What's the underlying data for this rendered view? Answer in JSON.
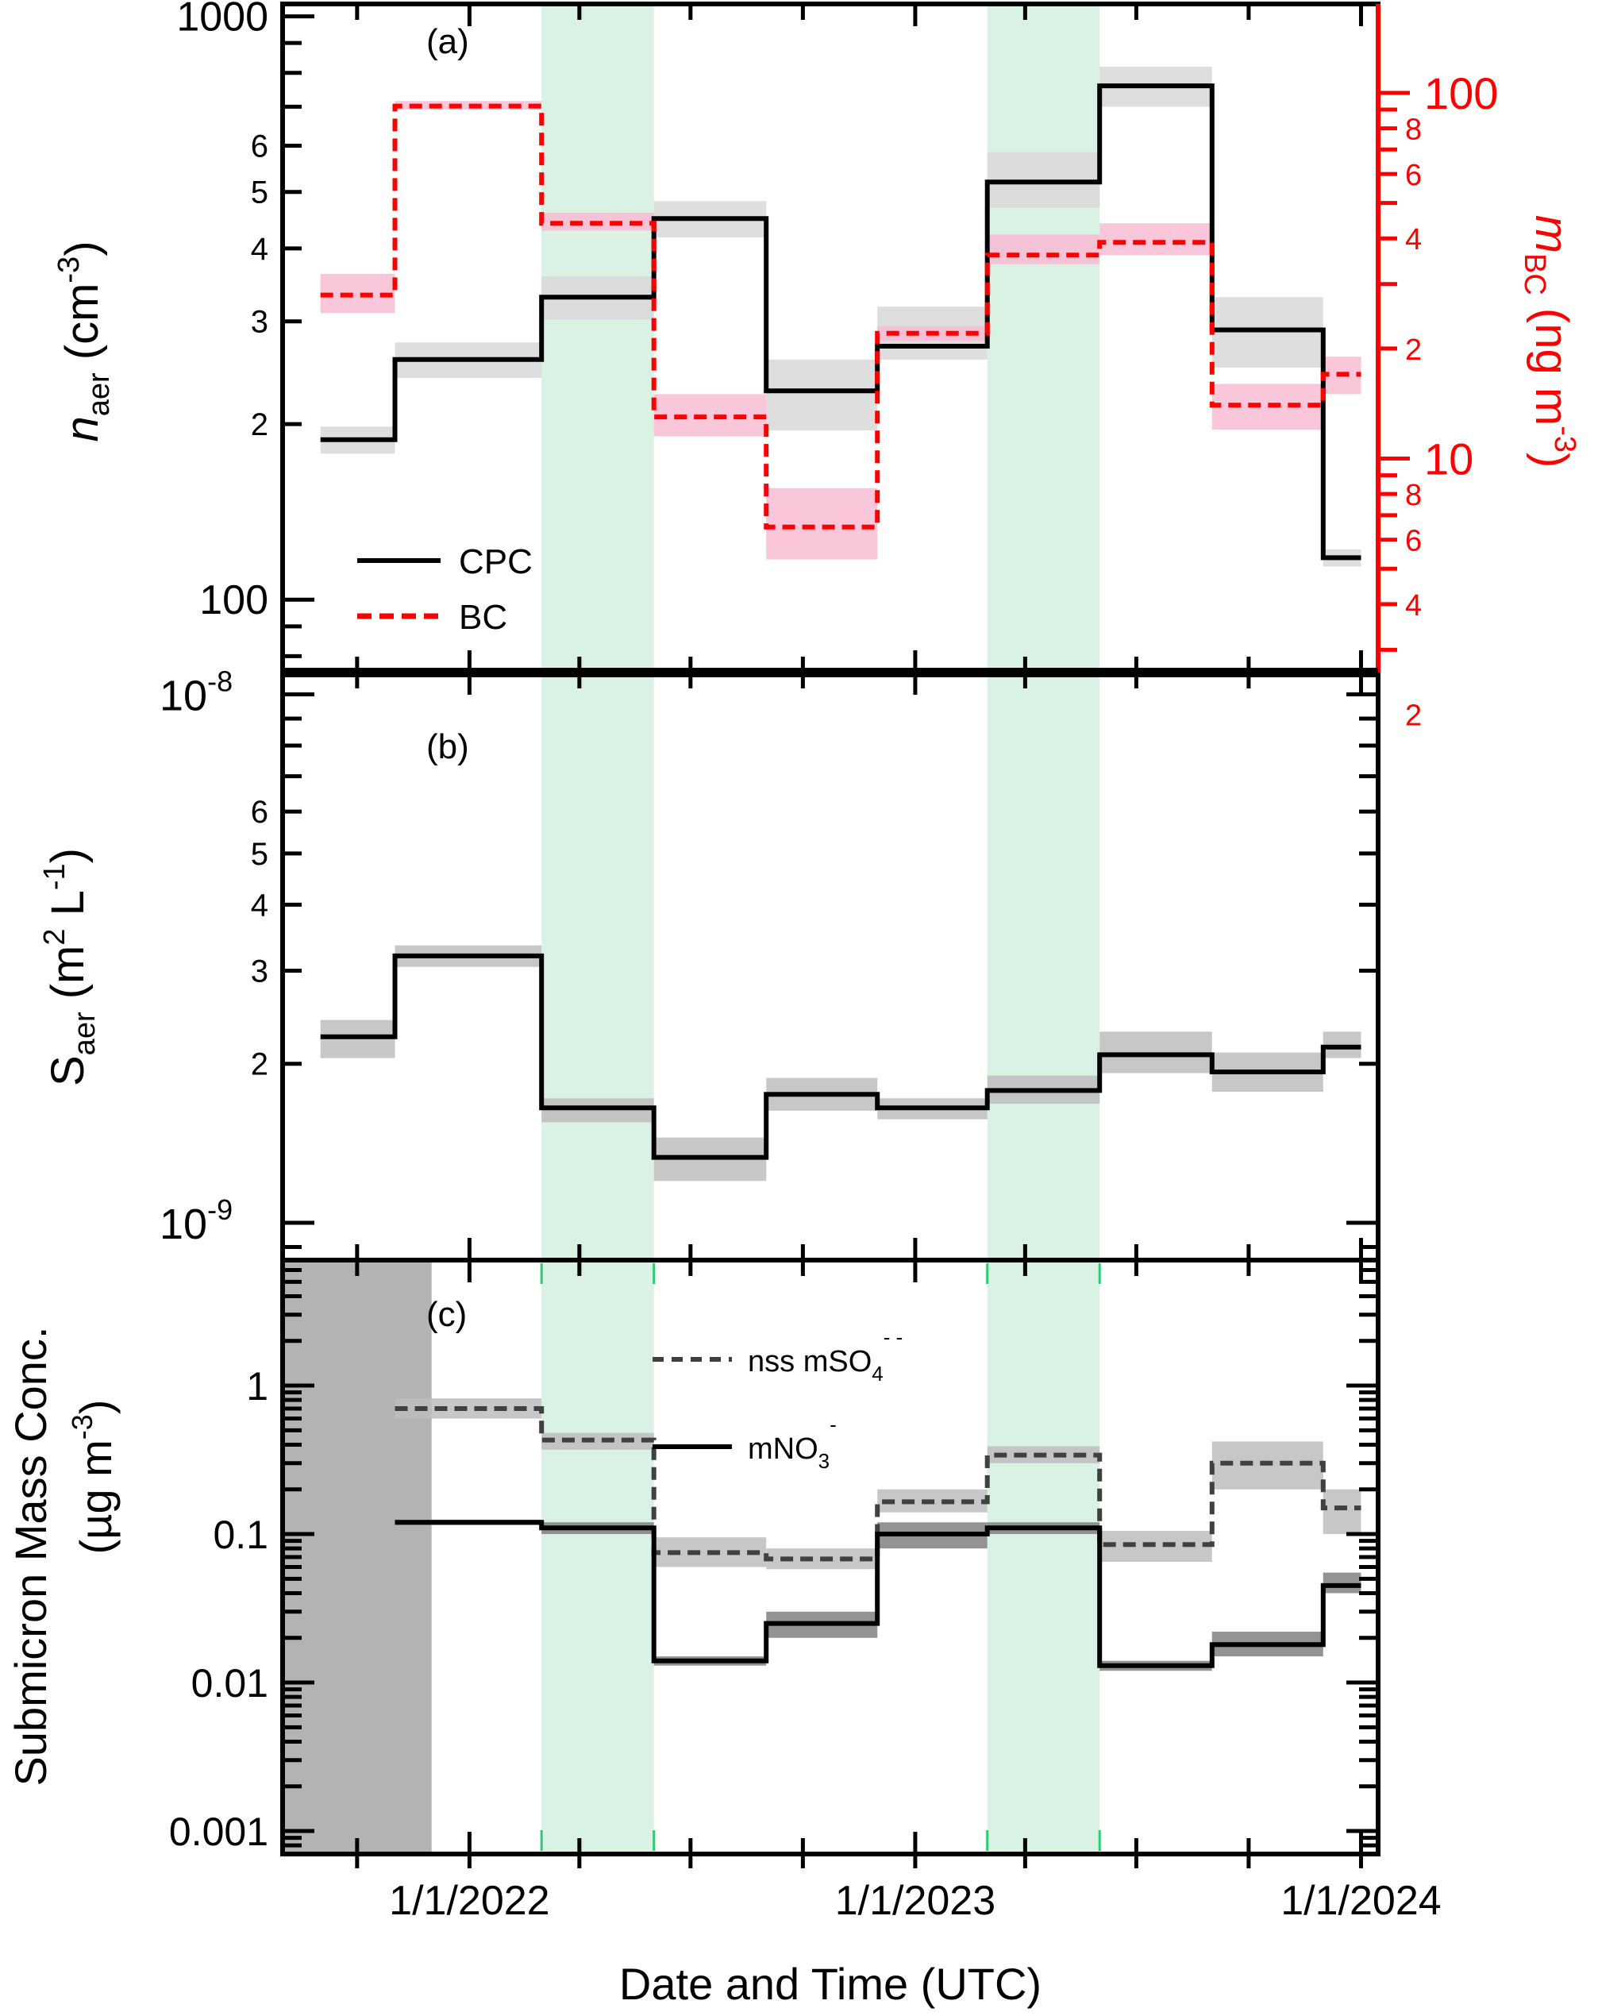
{
  "x_axis": {
    "label": "Date and Time (UTC)",
    "min": "2021-08-01",
    "max": "2024-01-15",
    "major_ticks": [
      "2021-10-01",
      "2022-01-01",
      "2022-04-01",
      "2022-07-01",
      "2022-10-01",
      "2023-01-01",
      "2023-04-01",
      "2023-07-01",
      "2023-10-01",
      "2024-01-01"
    ],
    "tick_labels": [
      {
        "date": "2022-01-01",
        "text": "1/1/2022"
      },
      {
        "date": "2023-01-01",
        "text": "1/1/2023"
      },
      {
        "date": "2024-01-01",
        "text": "1/1/2024"
      }
    ]
  },
  "highlight_periods": {
    "color": "#d9f2e3",
    "ranges": [
      [
        "2022-03-01",
        "2022-06-01"
      ],
      [
        "2023-03-01",
        "2023-06-01"
      ]
    ]
  },
  "panels": {
    "a": {
      "panel_label": "(a)",
      "left_axis": {
        "label_main": "n",
        "label_sub": "aer",
        "label_units": " (cm",
        "label_sup": "-3",
        "label_close": ")",
        "scale": "log",
        "range": [
          75,
          1050
        ],
        "major_tick_labels": [
          {
            "value": 100,
            "text": "100"
          },
          {
            "value": 200,
            "text": "2"
          },
          {
            "value": 300,
            "text": "3"
          },
          {
            "value": 400,
            "text": "4"
          },
          {
            "value": 500,
            "text": "5"
          },
          {
            "value": 600,
            "text": "6"
          },
          {
            "value": 1000,
            "text": "1000"
          }
        ]
      },
      "right_axis": {
        "color": "#ff0000",
        "label_main": "m",
        "label_sub": "BC",
        "label_units": " (ng m",
        "label_sup": "-3",
        "label_close": ")",
        "scale": "log",
        "range": [
          2.6,
          175
        ],
        "major_tick_labels": [
          {
            "value": 10,
            "text": "10"
          },
          {
            "value": 100,
            "text": "100"
          }
        ],
        "minor_tick_labels": [
          {
            "value": 4,
            "text": "4"
          },
          {
            "value": 6,
            "text": "6"
          },
          {
            "value": 8,
            "text": "8"
          },
          {
            "value": 2,
            "text": "2"
          },
          {
            "value": 40,
            "text": "4"
          },
          {
            "value": 60,
            "text": "6"
          },
          {
            "value": 80,
            "text": "8"
          },
          {
            "value": 20,
            "text": "2"
          }
        ]
      },
      "legend": [
        {
          "label": "CPC",
          "style": "solid",
          "color": "#000000"
        },
        {
          "label": "BC",
          "style": "dashed",
          "color": "#ff0000"
        }
      ]
    },
    "b": {
      "panel_label": "(b)",
      "left_axis": {
        "label_main": "S",
        "label_sub": "aer",
        "label_units": " (m",
        "label_sup": "2",
        "label_mid": " L",
        "label_sup2": "-1",
        "label_close": ")",
        "scale": "log",
        "range": [
          8.5e-10,
          1.1e-08
        ],
        "major_tick_labels": [
          {
            "value": 1e-09,
            "base": "10",
            "exp": "-9"
          },
          {
            "value": 1e-08,
            "base": "10",
            "exp": "-8"
          }
        ],
        "minor_tick_labels": [
          {
            "value": 2e-09,
            "text": "2"
          },
          {
            "value": 3e-09,
            "text": "3"
          },
          {
            "value": 4e-09,
            "text": "4"
          },
          {
            "value": 5e-09,
            "text": "5"
          },
          {
            "value": 6e-09,
            "text": "6"
          }
        ]
      }
    },
    "c": {
      "panel_label": "(c)",
      "left_axis": {
        "label_line1": "Submicron Mass Conc.",
        "label_line2": "(µg m",
        "label_sup": "-3",
        "label_close": ")",
        "scale": "log",
        "range": [
          0.0007,
          7
        ],
        "major_tick_labels": [
          {
            "value": 0.001,
            "text": "0.001"
          },
          {
            "value": 0.01,
            "text": "0.01"
          },
          {
            "value": 0.1,
            "text": "0.1"
          },
          {
            "value": 1,
            "text": "1"
          }
        ]
      },
      "no_data_period": [
        "2021-08-01",
        "2021-12-01"
      ],
      "legend": [
        {
          "prefix": "nss mSO",
          "sub": "4",
          "sup": "- -",
          "style": "dashed"
        },
        {
          "prefix": "mNO",
          "sub": "3",
          "sup": "-",
          "style": "solid"
        }
      ]
    }
  },
  "chart_data": {
    "type": "line",
    "step": true,
    "periods": [
      [
        "2021-09-01",
        "2021-11-01"
      ],
      [
        "2021-11-01",
        "2022-03-01"
      ],
      [
        "2022-03-01",
        "2022-06-01"
      ],
      [
        "2022-06-01",
        "2022-09-01"
      ],
      [
        "2022-09-01",
        "2022-12-01"
      ],
      [
        "2022-12-01",
        "2023-03-01"
      ],
      [
        "2023-03-01",
        "2023-06-01"
      ],
      [
        "2023-06-01",
        "2023-09-01"
      ],
      [
        "2023-09-01",
        "2023-12-01"
      ],
      [
        "2023-12-01",
        "2024-01-01"
      ]
    ],
    "series": [
      {
        "name": "CPC",
        "panel": "a",
        "axis": "left",
        "color": "#000000",
        "dash": false,
        "band_color": "#d8d8d8",
        "values": [
          188,
          258,
          330,
          450,
          228,
          272,
          520,
          760,
          290,
          118
        ],
        "band_low": [
          178,
          240,
          302,
          418,
          195,
          258,
          470,
          700,
          250,
          114
        ],
        "band_high": [
          198,
          276,
          358,
          482,
          258,
          318,
          585,
          820,
          330,
          122
        ]
      },
      {
        "name": "BC",
        "panel": "a",
        "axis": "right",
        "color": "#ff0000",
        "dash": true,
        "band_color": "#f8bcd4",
        "values": [
          28,
          92,
          44,
          13,
          6.5,
          22,
          36,
          39,
          14,
          17
        ],
        "band_low": [
          25,
          90,
          42,
          11.5,
          5.3,
          21,
          34,
          36,
          12,
          15
        ],
        "band_high": [
          32,
          95,
          47,
          15,
          8.3,
          23,
          41,
          44,
          16,
          19
        ]
      },
      {
        "panel": "b",
        "axis": "left",
        "color": "#000000",
        "dash": false,
        "band_color": "#bdbdbd",
        "values": [
          2.25e-09,
          3.2e-09,
          1.65e-09,
          1.33e-09,
          1.75e-09,
          1.65e-09,
          1.78e-09,
          2.08e-09,
          1.93e-09,
          2.15e-09
        ],
        "band_low": [
          2.05e-09,
          3.05e-09,
          1.55e-09,
          1.2e-09,
          1.63e-09,
          1.57e-09,
          1.68e-09,
          1.92e-09,
          1.77e-09,
          2.05e-09
        ],
        "band_high": [
          2.42e-09,
          3.35e-09,
          1.72e-09,
          1.45e-09,
          1.88e-09,
          1.72e-09,
          1.9e-09,
          2.3e-09,
          2.1e-09,
          2.3e-09
        ]
      },
      {
        "name": "nss mSO4 - -",
        "panel": "c",
        "axis": "left",
        "color": "#404040",
        "dash": true,
        "band_color": "#bdbdbd",
        "values": [
          null,
          0.7,
          0.43,
          0.075,
          0.068,
          0.165,
          0.34,
          0.085,
          0.3,
          0.15
        ],
        "band_low": [
          null,
          0.6,
          0.37,
          0.06,
          0.058,
          0.14,
          0.3,
          0.065,
          0.2,
          0.1
        ],
        "band_high": [
          null,
          0.82,
          0.48,
          0.095,
          0.08,
          0.2,
          0.39,
          0.105,
          0.42,
          0.2
        ]
      },
      {
        "name": "mNO3 -",
        "panel": "c",
        "axis": "left",
        "color": "#000000",
        "dash": false,
        "band_color": "#808080",
        "values": [
          null,
          0.12,
          0.11,
          0.014,
          0.025,
          0.1,
          0.11,
          0.013,
          0.018,
          0.045
        ],
        "band_low": [
          null,
          0.115,
          0.1,
          0.013,
          0.02,
          0.08,
          0.1,
          0.012,
          0.015,
          0.04
        ],
        "band_high": [
          null,
          0.125,
          0.12,
          0.015,
          0.03,
          0.12,
          0.12,
          0.014,
          0.022,
          0.055
        ]
      }
    ]
  }
}
